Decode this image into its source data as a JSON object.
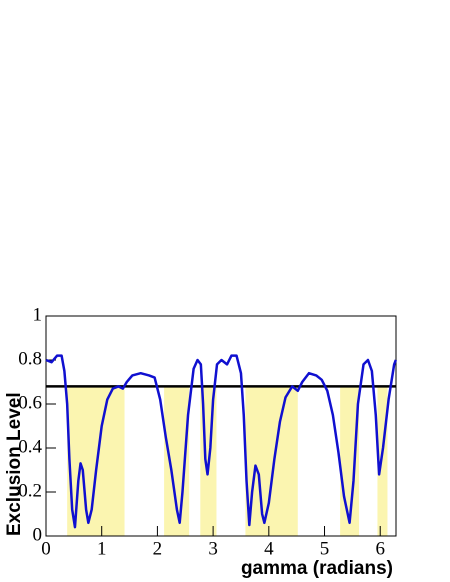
{
  "chart_data": {
    "type": "line",
    "x_label": "gamma (radians)",
    "y_label": "Exclusion Level",
    "xlim": [
      0,
      6.2832
    ],
    "ylim": [
      0,
      1
    ],
    "xticks": [
      0,
      1,
      2,
      3,
      4,
      5,
      6
    ],
    "yticks": [
      0,
      0.2,
      0.4,
      0.6,
      0.8,
      1
    ],
    "series": [
      {
        "color": "#1010d0",
        "x": [
          0,
          0.1,
          0.2,
          0.28,
          0.33,
          0.38,
          0.42,
          0.47,
          0.52,
          0.58,
          0.62,
          0.66,
          0.72,
          0.76,
          0.82,
          0.9,
          1.0,
          1.1,
          1.2,
          1.3,
          1.38,
          1.45,
          1.55,
          1.7,
          1.85,
          1.95,
          2.05,
          2.15,
          2.25,
          2.35,
          2.4,
          2.45,
          2.55,
          2.65,
          2.72,
          2.78,
          2.82,
          2.86,
          2.9,
          2.95,
          3.0,
          3.07,
          3.15,
          3.25,
          3.33,
          3.42,
          3.5,
          3.55,
          3.6,
          3.65,
          3.7,
          3.76,
          3.82,
          3.88,
          3.92,
          4.0,
          4.1,
          4.2,
          4.3,
          4.42,
          4.52,
          4.6,
          4.72,
          4.85,
          4.95,
          5.05,
          5.15,
          5.25,
          5.35,
          5.45,
          5.52,
          5.6,
          5.7,
          5.78,
          5.85,
          5.92,
          5.98,
          6.05,
          6.15,
          6.25,
          6.28
        ],
        "values": [
          0.8,
          0.79,
          0.82,
          0.82,
          0.75,
          0.6,
          0.35,
          0.12,
          0.04,
          0.25,
          0.33,
          0.3,
          0.12,
          0.06,
          0.12,
          0.3,
          0.5,
          0.62,
          0.67,
          0.68,
          0.67,
          0.7,
          0.73,
          0.74,
          0.73,
          0.72,
          0.62,
          0.45,
          0.3,
          0.12,
          0.06,
          0.2,
          0.55,
          0.76,
          0.8,
          0.78,
          0.6,
          0.35,
          0.28,
          0.4,
          0.62,
          0.78,
          0.8,
          0.78,
          0.82,
          0.82,
          0.74,
          0.55,
          0.25,
          0.05,
          0.2,
          0.32,
          0.28,
          0.1,
          0.06,
          0.15,
          0.35,
          0.52,
          0.63,
          0.68,
          0.66,
          0.7,
          0.74,
          0.73,
          0.71,
          0.66,
          0.55,
          0.38,
          0.18,
          0.06,
          0.25,
          0.6,
          0.78,
          0.8,
          0.75,
          0.55,
          0.28,
          0.4,
          0.62,
          0.78,
          0.8
        ]
      }
    ],
    "threshold": 0.68,
    "bands": [
      [
        0.38,
        1.41
      ],
      [
        2.12,
        2.57
      ],
      [
        2.77,
        3.06
      ],
      [
        3.58,
        4.52
      ],
      [
        5.28,
        5.62
      ],
      [
        5.95,
        6.13
      ]
    ],
    "band_color": "#fbf5b0"
  }
}
